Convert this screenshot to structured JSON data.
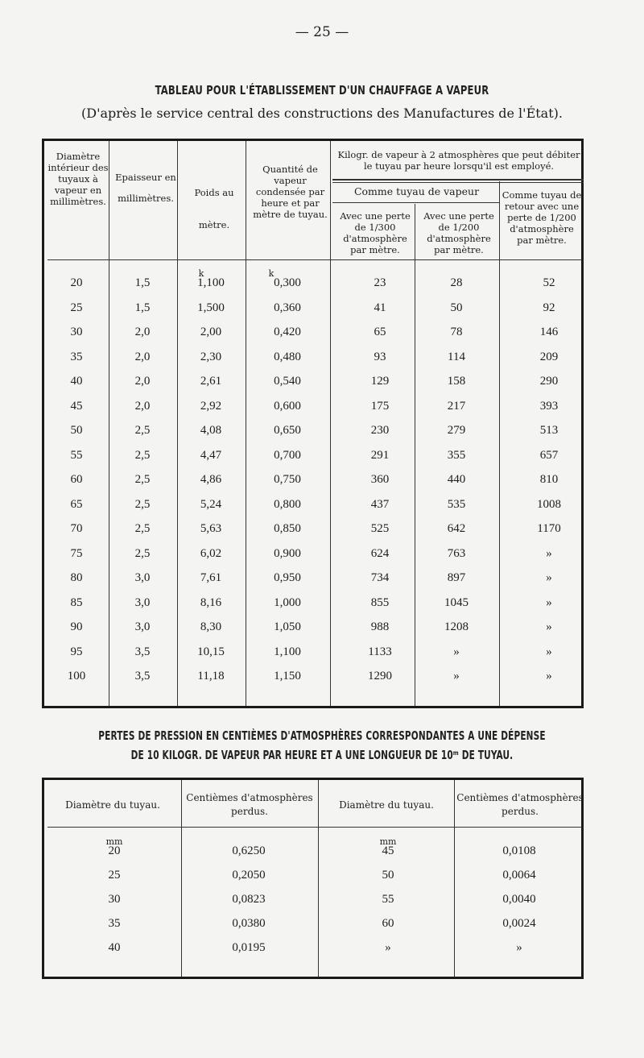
{
  "page_number": "— 25 —",
  "table1": {
    "title": "TABLEAU POUR L'ÉTABLISSEMENT D'UN CHAUFFAGE A VAPEUR",
    "subtitle": "(D'après le service central des constructions des Manufactures de l'État).",
    "headers": {
      "diametre": "Diamètre intérieur des tuyaux à vapeur en millimètres.",
      "epaisseur": "Epaisseur en millimètres.",
      "poids": "Poids au mètre.",
      "quantite": "Quantité de vapeur condensée par heure et par mètre de tuyau.",
      "kilogr": "Kilogr. de vapeur à 2 atmosphères que peut débiter le tuyau par heure lorsqu'il est employé.",
      "comme_vapeur": "Comme tuyau de vapeur",
      "perte_300": "Avec une perte de 1/300 d'atmosphère par mètre.",
      "perte_200": "Avec une perte de 1/200 d'atmosphère par mètre.",
      "retour": "Comme tuyau de retour avec une perte de 1/200 d'atmosphère par mètre."
    },
    "units": {
      "poids": "k",
      "quantite": "k"
    },
    "rows": [
      [
        "20",
        "1,5",
        "1,100",
        "0,300",
        "23",
        "28",
        "52"
      ],
      [
        "25",
        "1,5",
        "1,500",
        "0,360",
        "41",
        "50",
        "92"
      ],
      [
        "30",
        "2,0",
        "2,00",
        "0,420",
        "65",
        "78",
        "146"
      ],
      [
        "35",
        "2,0",
        "2,30",
        "0,480",
        "93",
        "114",
        "209"
      ],
      [
        "40",
        "2,0",
        "2,61",
        "0,540",
        "129",
        "158",
        "290"
      ],
      [
        "45",
        "2,0",
        "2,92",
        "0,600",
        "175",
        "217",
        "393"
      ],
      [
        "50",
        "2,5",
        "4,08",
        "0,650",
        "230",
        "279",
        "513"
      ],
      [
        "55",
        "2,5",
        "4,47",
        "0,700",
        "291",
        "355",
        "657"
      ],
      [
        "60",
        "2,5",
        "4,86",
        "0,750",
        "360",
        "440",
        "810"
      ],
      [
        "65",
        "2,5",
        "5,24",
        "0,800",
        "437",
        "535",
        "1008"
      ],
      [
        "70",
        "2,5",
        "5,63",
        "0,850",
        "525",
        "642",
        "1170"
      ],
      [
        "75",
        "2,5",
        "6,02",
        "0,900",
        "624",
        "763",
        "»"
      ],
      [
        "80",
        "3,0",
        "7,61",
        "0,950",
        "734",
        "897",
        "»"
      ],
      [
        "85",
        "3,0",
        "8,16",
        "1,000",
        "855",
        "1045",
        "»"
      ],
      [
        "90",
        "3,0",
        "8,30",
        "1,050",
        "988",
        "1208",
        "»"
      ],
      [
        "95",
        "3,5",
        "10,15",
        "1,100",
        "1133",
        "»",
        "»"
      ],
      [
        "100",
        "3,5",
        "11,18",
        "1,150",
        "1290",
        "»",
        "»"
      ]
    ]
  },
  "table2": {
    "title_line1": "PERTES DE PRESSION EN CENTIÈMES D'ATMOSPHÈRES CORRESPONDANTES A UNE DÉPENSE",
    "title_line2": "DE 10 KILOGR. DE VAPEUR PAR HEURE ET A UNE LONGUEUR DE 10ᵐ DE TUYAU.",
    "headers": [
      "Diamètre du tuyau.",
      "Centièmes d'atmosphères perdus.",
      "Diamètre du tuyau.",
      "Centièmes d'atmosphères perdus."
    ],
    "units": {
      "col1": "mm",
      "col3": "mm"
    },
    "rows": [
      [
        "20",
        "0,6250",
        "45",
        "0,0108"
      ],
      [
        "25",
        "0,2050",
        "50",
        "0,0064"
      ],
      [
        "30",
        "0,0823",
        "55",
        "0,0040"
      ],
      [
        "35",
        "0,0380",
        "60",
        "0,0024"
      ],
      [
        "40",
        "0,0195",
        "»",
        "»"
      ]
    ]
  }
}
